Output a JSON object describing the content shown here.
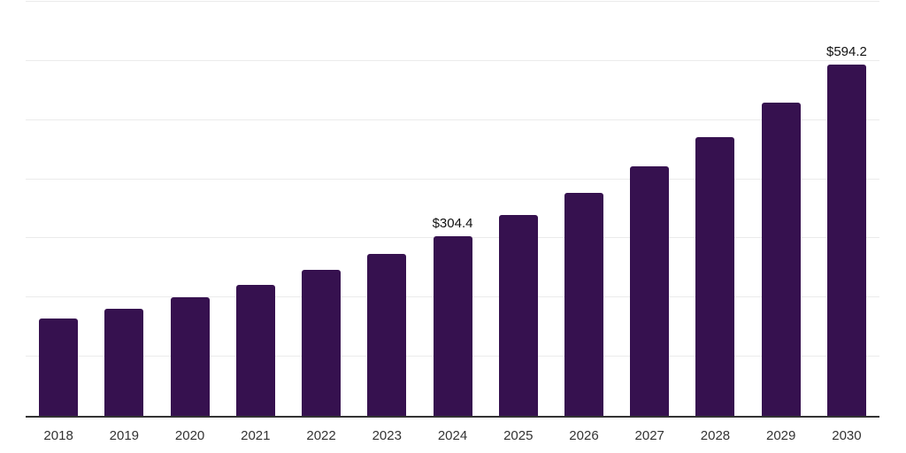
{
  "chart_data": {
    "type": "bar",
    "title": "",
    "xlabel": "",
    "ylabel": "",
    "categories": [
      "2018",
      "2019",
      "2020",
      "2021",
      "2022",
      "2023",
      "2024",
      "2025",
      "2026",
      "2027",
      "2028",
      "2029",
      "2030"
    ],
    "values": [
      164.3,
      180.9,
      201.0,
      222.0,
      246.4,
      273.5,
      304.4,
      339.1,
      377.6,
      421.1,
      471.5,
      529.5,
      594.2
    ],
    "annotations": [
      {
        "category": "2024",
        "text": "$304.4"
      },
      {
        "category": "2030",
        "text": "$594.2"
      }
    ],
    "ylim": [
      0,
      700
    ],
    "grid_interval": 100,
    "grid": "horizontal",
    "legend": "none",
    "colors": {
      "bar": "#36114f",
      "gridline": "#ebebeb",
      "axis_line": "#333333",
      "tick_label": "#333333",
      "value_label": "#111111",
      "background": "#ffffff"
    }
  }
}
